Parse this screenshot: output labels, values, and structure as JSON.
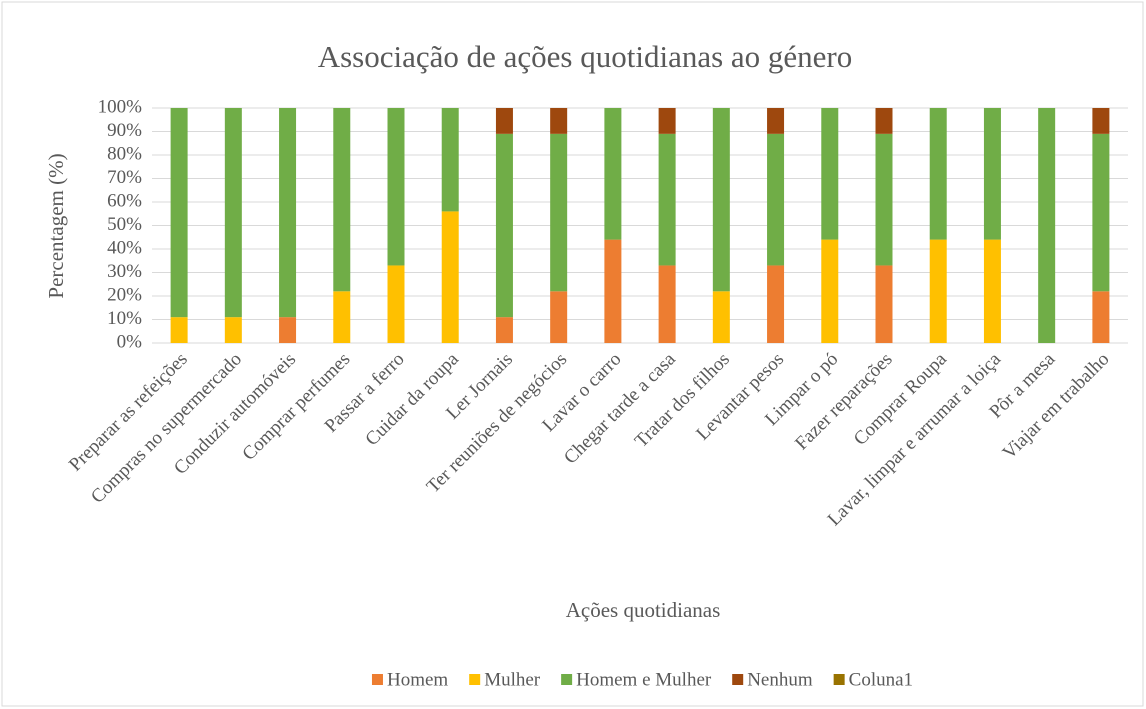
{
  "chart_data": {
    "type": "stacked_bar",
    "title": "Associação de ações quotidianas ao género",
    "x_label": "Ações quotidianas",
    "y_label": "Percentagem (%)",
    "categories": [
      "Preparar as refeições",
      "Compras no supermercado",
      "Conduzir automóveis",
      "Comprar perfumes",
      "Passar a ferro",
      "Cuidar da roupa",
      "Ler Jornais",
      "Ter reuniões de negócios",
      "Lavar o carro",
      "Chegar tarde a casa",
      "Tratar dos filhos",
      "Levantar pesos",
      "Limpar o pó",
      "Fazer reparações",
      "Comprar Roupa",
      "Lavar, limpar e arrumar a loiça",
      "Pôr a mesa",
      "Viajar em trabalho"
    ],
    "series": [
      {
        "name": "Homem",
        "color": "#ed7d31",
        "values": [
          0,
          0,
          11,
          0,
          0,
          0,
          11,
          22,
          44,
          33,
          0,
          33,
          0,
          33,
          0,
          0,
          0,
          22
        ]
      },
      {
        "name": "Mulher",
        "color": "#ffc000",
        "values": [
          11,
          11,
          0,
          22,
          33,
          56,
          0,
          0,
          0,
          0,
          22,
          0,
          44,
          0,
          44,
          44,
          0,
          0
        ]
      },
      {
        "name": "Homem e Mulher",
        "color": "#70ad47",
        "values": [
          89,
          89,
          89,
          78,
          67,
          44,
          78,
          67,
          56,
          56,
          78,
          56,
          56,
          56,
          56,
          56,
          100,
          67
        ]
      },
      {
        "name": "Nenhum",
        "color": "#9e480e",
        "values": [
          0,
          0,
          0,
          0,
          0,
          0,
          11,
          11,
          0,
          11,
          0,
          11,
          0,
          11,
          0,
          0,
          0,
          11
        ]
      },
      {
        "name": "Coluna1",
        "color": "#997300",
        "values": [
          0,
          0,
          0,
          0,
          0,
          0,
          0,
          0,
          0,
          0,
          0,
          0,
          0,
          0,
          0,
          0,
          0,
          0
        ]
      }
    ],
    "ylim": [
      0,
      100
    ],
    "yticks": [
      {
        "value": 0,
        "label": "0%"
      },
      {
        "value": 10,
        "label": "10%"
      },
      {
        "value": 20,
        "label": "20%"
      },
      {
        "value": 30,
        "label": "30%"
      },
      {
        "value": 40,
        "label": "40%"
      },
      {
        "value": 50,
        "label": "50%"
      },
      {
        "value": 60,
        "label": "60%"
      },
      {
        "value": 70,
        "label": "70%"
      },
      {
        "value": 80,
        "label": "80%"
      },
      {
        "value": 90,
        "label": "90%"
      },
      {
        "value": 100,
        "label": "100%"
      }
    ],
    "grid": true,
    "legend": "bottom"
  }
}
